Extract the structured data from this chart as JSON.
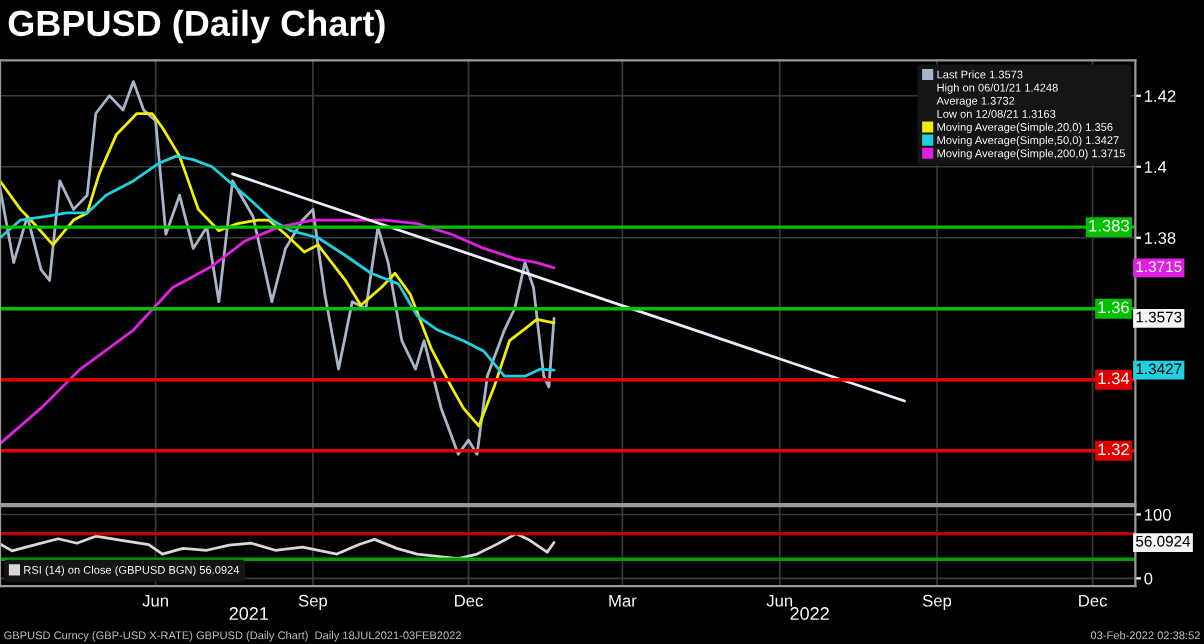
{
  "chart_data": [
    {
      "type": "line",
      "title": "GBPUSD (Daily Chart)",
      "xlim": [
        "2021-03-16",
        "2023-01-09"
      ],
      "ylim": [
        1.305,
        1.43
      ],
      "yticks": [
        1.38,
        1.4,
        1.42
      ],
      "xticks": [
        {
          "value": "2021-06-15",
          "label": null
        },
        {
          "value": "2021-09-15",
          "label": null
        },
        {
          "value": "2021-12-15",
          "label": null
        },
        {
          "value": "2022-03-15",
          "label": null
        },
        {
          "value": "2022-06-15",
          "label": null
        },
        {
          "value": "2022-09-15",
          "label": null
        },
        {
          "value": "2022-12-15",
          "label": null
        }
      ],
      "tick_labels": "y",
      "grid": true,
      "legend": "top right",
      "series": [
        {
          "name": "Last Price 1.3573",
          "color": "#a8b4c8",
          "x": [
            "2021-03-16",
            "2021-03-24",
            "2021-04-01",
            "2021-04-09",
            "2021-04-14",
            "2021-04-20",
            "2021-04-28",
            "2021-05-06",
            "2021-05-11",
            "2021-05-19",
            "2021-05-27",
            "2021-06-02",
            "2021-06-08",
            "2021-06-15",
            "2021-06-21",
            "2021-06-29",
            "2021-07-07",
            "2021-07-15",
            "2021-07-22",
            "2021-07-30",
            "2021-08-11",
            "2021-08-22",
            "2021-08-30",
            "2021-09-09",
            "2021-09-15",
            "2021-09-22",
            "2021-09-30",
            "2021-10-08",
            "2021-10-16",
            "2021-10-23",
            "2021-10-29",
            "2021-11-06",
            "2021-11-14",
            "2021-11-19",
            "2021-11-29",
            "2021-12-09",
            "2021-12-15",
            "2021-12-20",
            "2021-12-26",
            "2022-01-05",
            "2022-01-11",
            "2022-01-17",
            "2022-01-22",
            "2022-01-28",
            "2022-01-31",
            "2022-02-03"
          ],
          "values": [
            1.394,
            1.373,
            1.386,
            1.371,
            1.368,
            1.396,
            1.388,
            1.392,
            1.415,
            1.42,
            1.416,
            1.424,
            1.416,
            1.413,
            1.381,
            1.392,
            1.377,
            1.383,
            1.362,
            1.396,
            1.386,
            1.362,
            1.377,
            1.385,
            1.388,
            1.364,
            1.343,
            1.362,
            1.36,
            1.383,
            1.373,
            1.351,
            1.343,
            1.351,
            1.332,
            1.319,
            1.323,
            1.319,
            1.341,
            1.354,
            1.36,
            1.373,
            1.366,
            1.341,
            1.338,
            1.3573
          ]
        },
        {
          "name": "Moving Average(Simple,20,0) 1.356",
          "color": "#f0f000",
          "x": [
            "2021-03-16",
            "2021-03-28",
            "2021-04-03",
            "2021-04-16",
            "2021-04-28",
            "2021-05-06",
            "2021-05-13",
            "2021-05-23",
            "2021-06-04",
            "2021-06-13",
            "2021-06-19",
            "2021-06-29",
            "2021-07-10",
            "2021-07-22",
            "2021-08-02",
            "2021-08-14",
            "2021-08-20",
            "2021-08-30",
            "2021-09-10",
            "2021-09-18",
            "2021-10-04",
            "2021-10-13",
            "2021-10-25",
            "2021-11-02",
            "2021-11-11",
            "2021-11-23",
            "2021-12-05",
            "2021-12-12",
            "2021-12-21",
            "2021-12-30",
            "2022-01-08",
            "2022-01-16",
            "2022-01-24",
            "2022-02-03"
          ],
          "values": [
            1.396,
            1.388,
            1.385,
            1.378,
            1.385,
            1.387,
            1.398,
            1.409,
            1.415,
            1.415,
            1.411,
            1.403,
            1.388,
            1.382,
            1.384,
            1.385,
            1.385,
            1.381,
            1.376,
            1.378,
            1.368,
            1.361,
            1.366,
            1.37,
            1.364,
            1.349,
            1.338,
            1.332,
            1.327,
            1.338,
            1.351,
            1.354,
            1.357,
            1.356
          ]
        },
        {
          "name": "Moving Average(Simple,50,0) 1.3427",
          "color": "#20d0e0",
          "x": [
            "2021-03-16",
            "2021-03-28",
            "2021-04-12",
            "2021-04-24",
            "2021-05-06",
            "2021-05-17",
            "2021-06-02",
            "2021-06-17",
            "2021-06-27",
            "2021-07-07",
            "2021-07-18",
            "2021-07-30",
            "2021-08-11",
            "2021-08-22",
            "2021-09-02",
            "2021-09-18",
            "2021-10-04",
            "2021-10-19",
            "2021-11-04",
            "2021-11-15",
            "2021-11-27",
            "2021-12-12",
            "2021-12-24",
            "2022-01-05",
            "2022-01-17",
            "2022-01-26",
            "2022-02-03"
          ],
          "values": [
            1.38,
            1.385,
            1.386,
            1.387,
            1.387,
            1.392,
            1.396,
            1.401,
            1.403,
            1.402,
            1.4,
            1.395,
            1.39,
            1.385,
            1.382,
            1.38,
            1.375,
            1.37,
            1.367,
            1.358,
            1.354,
            1.351,
            1.348,
            1.341,
            1.341,
            1.343,
            1.3427
          ]
        },
        {
          "name": "Moving Average(Simple,200,0) 1.3715",
          "color": "#e020e0",
          "x": [
            "2021-03-16",
            "2021-04-09",
            "2021-05-02",
            "2021-06-02",
            "2021-06-25",
            "2021-07-18",
            "2021-08-06",
            "2021-08-26",
            "2021-09-15",
            "2021-10-04",
            "2021-10-27",
            "2021-11-15",
            "2021-12-05",
            "2021-12-24",
            "2022-01-12",
            "2022-01-24",
            "2022-02-03"
          ],
          "values": [
            1.322,
            1.332,
            1.343,
            1.354,
            1.366,
            1.372,
            1.379,
            1.383,
            1.385,
            1.385,
            1.385,
            1.384,
            1.381,
            1.377,
            1.374,
            1.373,
            1.3715
          ]
        },
        {
          "color": "#e8eef8",
          "x": [
            "2021-07-30",
            "2022-08-27"
          ],
          "values": [
            1.398,
            1.334
          ]
        }
      ],
      "ref_lines": [
        {
          "axis": "y",
          "value": 1.383,
          "label": "1.383",
          "color": "#00c000"
        },
        {
          "axis": "y",
          "value": 1.36,
          "label": "1.36",
          "color": "#00c000"
        },
        {
          "axis": "y",
          "value": 1.34,
          "label": "1.34",
          "color": "#e00000"
        },
        {
          "axis": "y",
          "value": 1.32,
          "label": "1.32",
          "color": "#e00000"
        }
      ],
      "annotations": [
        "High on 06/01/21 1.4248",
        "Average 1.3732",
        "Low on 12/08/21 1.3163",
        {
          "text": "1.3715",
          "y": 1.3715
        },
        {
          "text": "1.3573",
          "x": "2023-01-09",
          "y": 1.3573
        },
        {
          "text": "1.3427",
          "x": "2023-01-09",
          "y": 1.3427
        }
      ]
    },
    {
      "type": "line",
      "xlim": [
        "2021-03-16",
        "2023-01-09"
      ],
      "ylim": [
        -12,
        113
      ],
      "yticks": [
        0,
        100
      ],
      "xticks": [
        {
          "value": "2021-06-15",
          "label": "Jun"
        },
        {
          "value": "2021-09-15",
          "label": "Sep"
        },
        {
          "value": "2021-12-15",
          "label": "Dec"
        },
        {
          "value": "2022-03-15",
          "label": "Mar"
        },
        {
          "value": "2022-06-15",
          "label": "Jun"
        },
        {
          "value": "2022-09-15",
          "label": "Sep"
        },
        {
          "value": "2022-12-15",
          "label": "Dec"
        }
      ],
      "grid": true,
      "legend": "bottom left",
      "series": [
        {
          "name": "RSI (14) on Close (GBPUSD BGN) 56.0924",
          "color": "#d8d8d8",
          "x": [
            "2021-03-16",
            "2021-03-23",
            "2021-04-03",
            "2021-04-19",
            "2021-04-30",
            "2021-05-11",
            "2021-05-27",
            "2021-06-11",
            "2021-06-19",
            "2021-07-01",
            "2021-07-15",
            "2021-07-28",
            "2021-08-10",
            "2021-08-24",
            "2021-09-09",
            "2021-09-29",
            "2021-10-12",
            "2021-10-21",
            "2021-11-03",
            "2021-11-15",
            "2021-11-28",
            "2021-12-09",
            "2021-12-20",
            "2022-01-01",
            "2022-01-12",
            "2022-01-19",
            "2022-01-30",
            "2022-02-03"
          ],
          "values": [
            54,
            43,
            51,
            62,
            55,
            66,
            59,
            53,
            38,
            47,
            44,
            52,
            55,
            44,
            49,
            38,
            53,
            61,
            47,
            38,
            34,
            31,
            38,
            54,
            70,
            61,
            41,
            56.0924
          ]
        }
      ],
      "ref_lines": [
        {
          "axis": "y",
          "value": 70,
          "color": "#c00000"
        },
        {
          "axis": "y",
          "value": 30,
          "color": "#00a000"
        }
      ],
      "annotations": [
        "2021",
        "2022",
        {
          "text": "56.0924",
          "x": "2023-01-09",
          "y": 56.0924
        },
        "GBPUSD Curncy (GBP-USD X-RATE) GBPUSD (Daily Chart)  Daily 18JUL2021-03FEB2022",
        "03-Feb-2022 02:38:52"
      ]
    }
  ]
}
